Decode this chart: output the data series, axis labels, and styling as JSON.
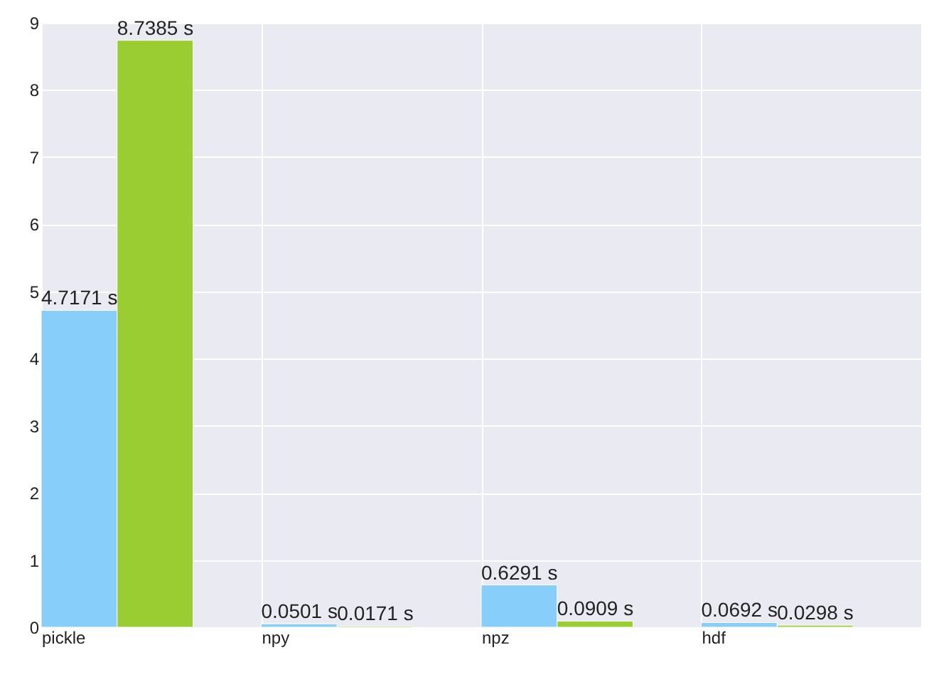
{
  "chart_data": {
    "type": "bar",
    "categories": [
      "pickle",
      "npy",
      "npz",
      "hdf"
    ],
    "series": [
      {
        "color": "#87cefa",
        "values": [
          4.7171,
          0.0501,
          0.6291,
          0.0692
        ],
        "value_labels": [
          "4.7171 s",
          "0.0501 s",
          "0.6291 s",
          "0.0692 s"
        ]
      },
      {
        "color": "#9acd32",
        "values": [
          8.7385,
          0.0171,
          0.0909,
          0.0298
        ],
        "value_labels": [
          "8.7385 s",
          "0.0171 s",
          "0.0909 s",
          "0.0298 s"
        ]
      }
    ],
    "ylim": [
      0,
      9
    ],
    "yticks": [
      0,
      1,
      2,
      3,
      4,
      5,
      6,
      7,
      8,
      9
    ],
    "grid": true
  }
}
